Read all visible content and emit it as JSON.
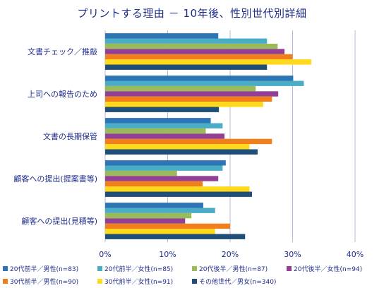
{
  "chart_data": {
    "type": "bar",
    "orientation": "horizontal",
    "title": "プリントする理由 － 10年後、性別世代別詳細",
    "xlabel": "",
    "ylabel": "",
    "xlim": [
      0,
      40
    ],
    "x_ticks": [
      "0%",
      "10%",
      "20%",
      "30%",
      "40%"
    ],
    "grid": true,
    "legend_position": "bottom",
    "categories": [
      "文書チェック／推敲",
      "上司への報告のため",
      "文書の長期保管",
      "顧客への提出(提案書等)",
      "顧客への提出(見積等)"
    ],
    "series": [
      {
        "name": "20代前半／男性(n=83)",
        "color": "#2e75b6",
        "values": [
          18.1,
          30.1,
          16.9,
          19.3,
          15.7
        ]
      },
      {
        "name": "20代前半／女性(n=85)",
        "color": "#4bacc6",
        "values": [
          25.9,
          31.8,
          18.8,
          18.8,
          17.6
        ]
      },
      {
        "name": "20代後半／男性(n=87)",
        "color": "#9bbb59",
        "values": [
          27.6,
          24.1,
          16.1,
          11.5,
          13.8
        ]
      },
      {
        "name": "20代後半／女性(n=94)",
        "color": "#943f96",
        "values": [
          28.7,
          27.7,
          19.1,
          18.1,
          12.8
        ]
      },
      {
        "name": "30代前半／男性(n=90)",
        "color": "#f07f1c",
        "values": [
          30.0,
          26.7,
          26.7,
          15.6,
          20.0
        ]
      },
      {
        "name": "30代前半／女性(n=91)",
        "color": "#ffd91a",
        "values": [
          33.0,
          25.3,
          23.1,
          23.1,
          17.6
        ]
      },
      {
        "name": "その他世代／男女(n=340)",
        "color": "#1f4e79",
        "values": [
          25.9,
          18.2,
          24.4,
          23.5,
          22.4
        ]
      }
    ]
  }
}
